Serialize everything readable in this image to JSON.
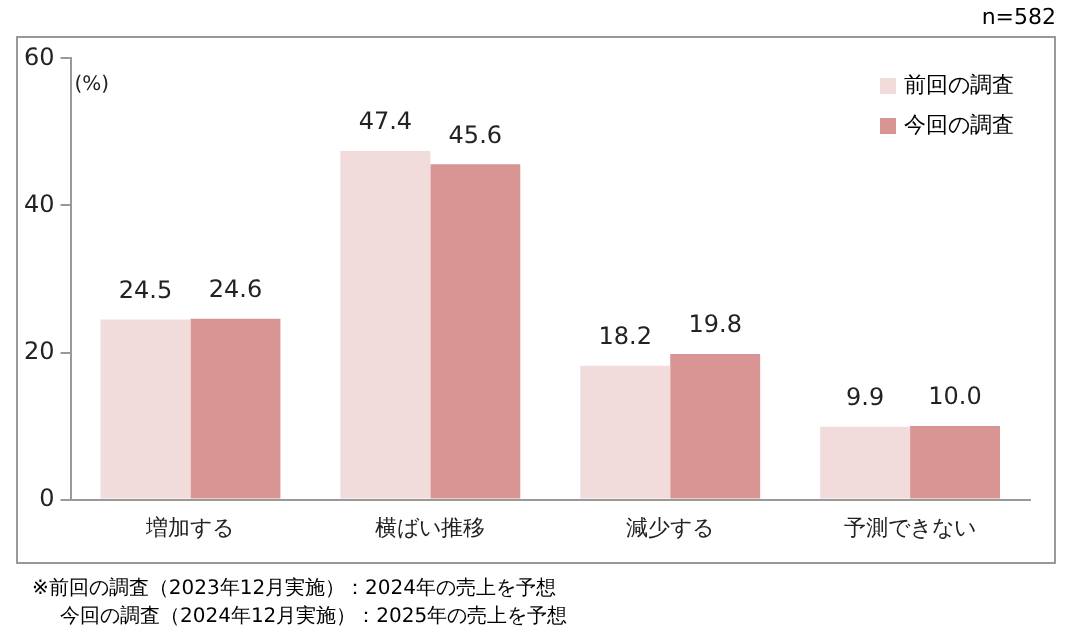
{
  "chart_data": {
    "type": "bar",
    "ylabel": "(%)",
    "categories": [
      "増加する",
      "横ばい推移",
      "減少する",
      "予測できない"
    ],
    "series": [
      {
        "name": "前回の調査",
        "color": "#f2dcdb",
        "values": [
          24.5,
          47.4,
          18.2,
          9.9
        ],
        "value_labels": [
          "24.5",
          "47.4",
          "18.2",
          "9.9"
        ]
      },
      {
        "name": "今回の調査",
        "color": "#d99594",
        "values": [
          24.6,
          45.6,
          19.8,
          10.0
        ],
        "value_labels": [
          "24.6",
          "45.6",
          "19.8",
          "10.0"
        ]
      }
    ],
    "ylim": [
      0,
      60
    ],
    "yticks": [
      0,
      20,
      40,
      60
    ],
    "grid": false,
    "legend": "top right",
    "annotations": [
      "n=582",
      "※前回の調査（2023年12月実施）：2024年の売上を予想",
      "今回の調査（2024年12月実施）：2025年の売上を予想"
    ]
  }
}
